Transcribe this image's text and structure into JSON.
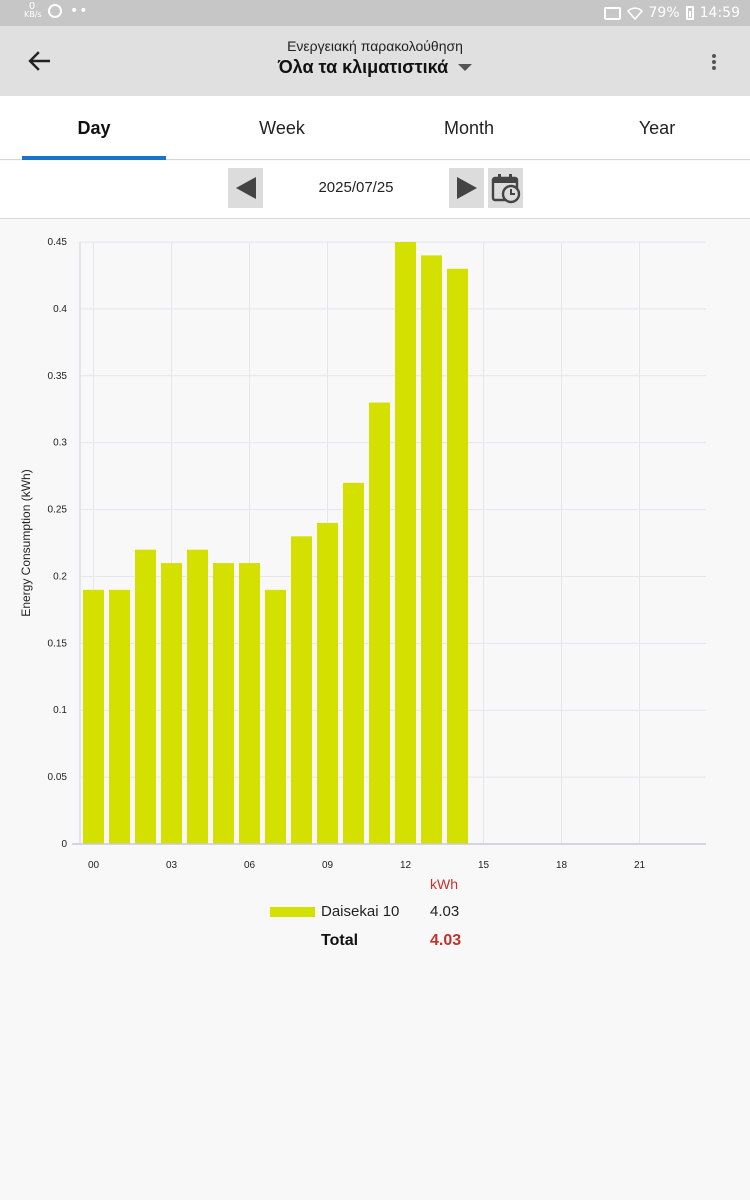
{
  "status_bar": {
    "net_speed_value": "0",
    "net_speed_unit": "KB/s",
    "battery": "79%",
    "time": "14:59"
  },
  "app_bar": {
    "subtitle": "Ενεργειακή παρακολούθηση",
    "title": "Όλα τα κλιματιστικά"
  },
  "tabs": [
    {
      "label": "Day",
      "active": true
    },
    {
      "label": "Week",
      "active": false
    },
    {
      "label": "Month",
      "active": false
    },
    {
      "label": "Year",
      "active": false
    }
  ],
  "date_nav": {
    "date": "2025/07/25"
  },
  "colors": {
    "bar": "#d4e000",
    "accent": "#1a73c8",
    "total": "#c4312c"
  },
  "chart_data": {
    "type": "bar",
    "ylabel": "Energy Consumption (kWh)",
    "ylim": [
      0,
      0.45
    ],
    "y_ticks": [
      "0",
      "0.05",
      "0.1",
      "0.15",
      "0.2",
      "0.25",
      "0.3",
      "0.35",
      "0.4",
      "0.45"
    ],
    "x_ticks": [
      "00",
      "03",
      "06",
      "09",
      "12",
      "15",
      "18",
      "21"
    ],
    "x_tick_hours": [
      0,
      3,
      6,
      9,
      12,
      15,
      18,
      21
    ],
    "hours": [
      0,
      1,
      2,
      3,
      4,
      5,
      6,
      7,
      8,
      9,
      10,
      11,
      12,
      13,
      14
    ],
    "values": [
      0.19,
      0.19,
      0.22,
      0.21,
      0.22,
      0.21,
      0.21,
      0.19,
      0.23,
      0.24,
      0.27,
      0.33,
      0.45,
      0.44,
      0.43
    ],
    "grid": true
  },
  "legend": {
    "unit": "kWh",
    "series": [
      {
        "name": "Daisekai 10",
        "value": "4.03"
      }
    ],
    "total_label": "Total",
    "total_value": "4.03"
  }
}
